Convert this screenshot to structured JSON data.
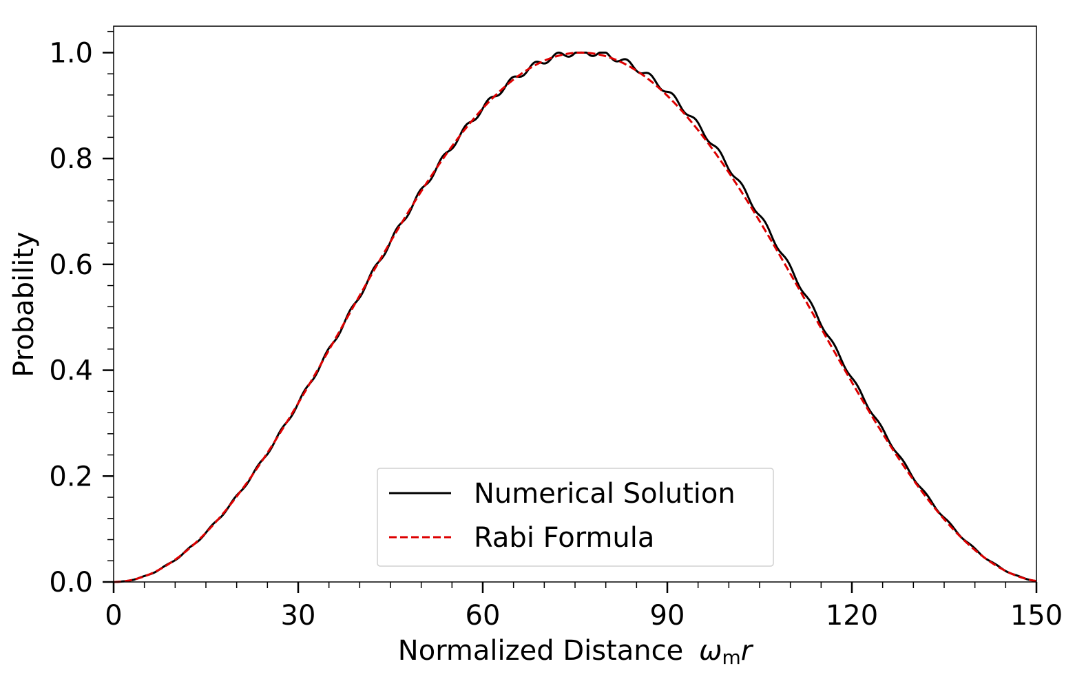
{
  "chart_data": {
    "type": "line",
    "title": "",
    "xlabel": "Normalized Distance",
    "xlabel_symbol": "ω",
    "xlabel_subscript": "m",
    "xlabel_var": "r",
    "ylabel": "Probability",
    "xlim": [
      0,
      150
    ],
    "ylim": [
      0,
      1.05
    ],
    "x_ticks": [
      0,
      30,
      60,
      90,
      120,
      150
    ],
    "x_tick_labels": [
      "0",
      "30",
      "60",
      "90",
      "120",
      "150"
    ],
    "y_ticks": [
      0.0,
      0.2,
      0.4,
      0.6,
      0.8,
      1.0
    ],
    "y_tick_labels": [
      "0.0",
      "0.2",
      "0.4",
      "0.6",
      "0.8",
      "1.0"
    ],
    "x_minor_step": 5,
    "y_minor_step": 0.04,
    "grid": false,
    "legend_position": "lower-center",
    "series": [
      {
        "name": "Numerical Solution",
        "color": "#000000",
        "style": "solid",
        "model": "sin^2(pi*x/152) with small oscillations",
        "period": 152,
        "ripple_amplitude": 0.006,
        "ripple_period": 3.75
      },
      {
        "name": "Rabi Formula",
        "color": "#dd0000",
        "style": "dashed",
        "model": "sin^2(pi*x/152)",
        "period": 152
      }
    ],
    "legend": [
      "Numerical Solution",
      "Rabi Formula"
    ]
  }
}
